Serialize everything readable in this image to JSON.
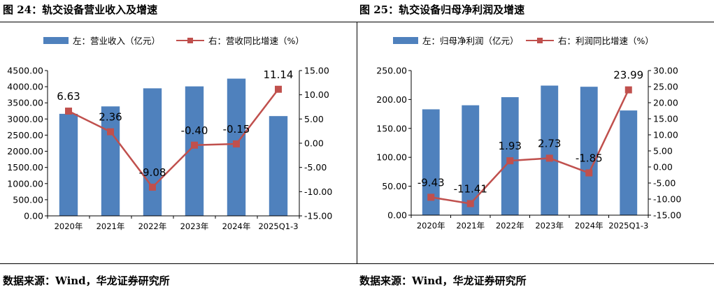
{
  "colors": {
    "bar": "#4F81BD",
    "line": "#C0504D",
    "axis": "#000000"
  },
  "figures": [
    {
      "title": "图 24：轨交设备营业收入及增速",
      "source": "数据来源：Wind，华龙证券研究所",
      "chart_data": {
        "type": "bar+line",
        "categories": [
          "2020年",
          "2021年",
          "2022年",
          "2023年",
          "2024年",
          "2025Q1-3"
        ],
        "legend": [
          "左：营业收入（亿元）",
          "右：营收同比增速（%）"
        ],
        "legend_position": "top",
        "grid": false,
        "left_axis": {
          "ylim": [
            0,
            4500
          ],
          "ticks": [
            "0.00",
            "500.00",
            "1000.00",
            "1500.00",
            "2000.00",
            "2500.00",
            "3000.00",
            "3500.00",
            "4000.00",
            "4500.00"
          ]
        },
        "right_axis": {
          "ylim": [
            -15,
            15
          ],
          "ticks": [
            "-15.00",
            "-10.00",
            "-5.00",
            "0.00",
            "5.00",
            "10.00",
            "15.00"
          ]
        },
        "series": [
          {
            "name": "左：营业收入（亿元）",
            "type": "bar",
            "axis": "left",
            "values": [
              3160,
              3390,
              3950,
              4010,
              4250,
              3090
            ]
          },
          {
            "name": "右：营收同比增速（%）",
            "type": "line",
            "axis": "right",
            "values": [
              6.63,
              2.36,
              -9.08,
              -0.4,
              -0.15,
              11.14
            ],
            "labels": [
              "6.63",
              "2.36",
              "-9.08",
              "-0.40",
              "-0.15",
              "11.14"
            ]
          }
        ]
      }
    },
    {
      "title": "图 25：轨交设备归母净利润及增速",
      "source": "数据来源：Wind，华龙证券研究所",
      "chart_data": {
        "type": "bar+line",
        "categories": [
          "2020年",
          "2021年",
          "2022年",
          "2023年",
          "2024年",
          "2025Q1-3"
        ],
        "legend": [
          "左：归母净利润（亿元）",
          "右：利润同比增速（%）"
        ],
        "legend_position": "top",
        "grid": false,
        "left_axis": {
          "ylim": [
            0,
            250
          ],
          "ticks": [
            "0.00",
            "50.00",
            "100.00",
            "150.00",
            "200.00",
            "250.00"
          ]
        },
        "right_axis": {
          "ylim": [
            -15,
            30
          ],
          "ticks": [
            "-15.00",
            "-10.00",
            "-5.00",
            "0.00",
            "5.00",
            "10.00",
            "15.00",
            "20.00",
            "25.00",
            "30.00"
          ]
        },
        "series": [
          {
            "name": "左：归母净利润（亿元）",
            "type": "bar",
            "axis": "left",
            "values": [
              183,
              190,
              204,
              224,
              222,
              181
            ]
          },
          {
            "name": "右：利润同比增速（%）",
            "type": "line",
            "axis": "right",
            "values": [
              -9.43,
              -11.41,
              1.93,
              2.73,
              -1.85,
              23.99
            ],
            "labels": [
              "-9.43",
              "-11.41",
              "1.93",
              "2.73",
              "-1.85",
              "23.99"
            ]
          }
        ]
      }
    }
  ]
}
